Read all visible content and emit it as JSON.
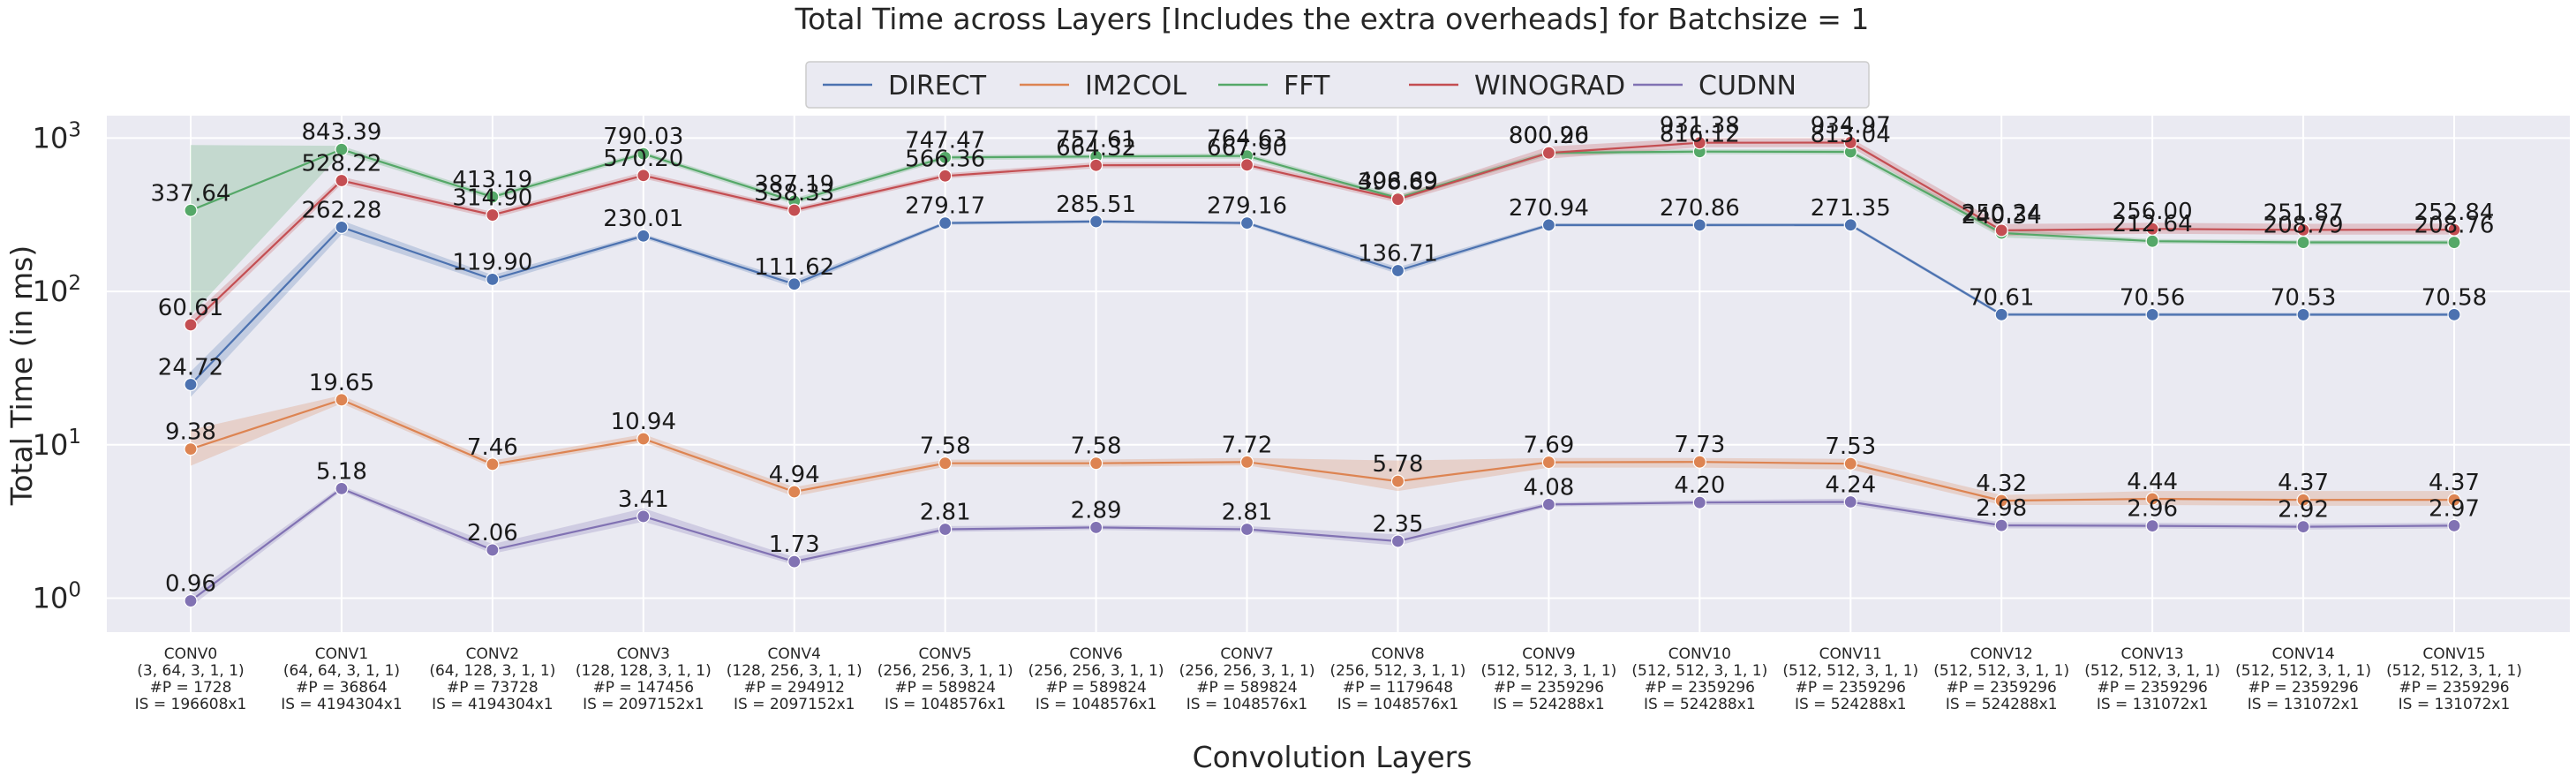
{
  "chart_data": {
    "type": "line",
    "title": "Total Time across Layers [Includes the extra overheads]  for Batchsize = 1",
    "xlabel": "Convolution Layers",
    "ylabel": "Total Time (in ms)",
    "y_scale": "log",
    "ylim": [
      0.6,
      1400
    ],
    "y_ticks": [
      {
        "value": 1,
        "base": "10",
        "exp": "0"
      },
      {
        "value": 10,
        "base": "10",
        "exp": "1"
      },
      {
        "value": 100,
        "base": "10",
        "exp": "2"
      },
      {
        "value": 1000,
        "base": "10",
        "exp": "3"
      }
    ],
    "grid": true,
    "legend_position": "top-center",
    "categories": [
      {
        "name": "CONV0",
        "shape": "(3, 64, 3, 1, 1)",
        "params": "#P = 1728",
        "is": "IS = 196608x1"
      },
      {
        "name": "CONV1",
        "shape": "(64, 64, 3, 1, 1)",
        "params": "#P = 36864",
        "is": "IS = 4194304x1"
      },
      {
        "name": "CONV2",
        "shape": "(64, 128, 3, 1, 1)",
        "params": "#P = 73728",
        "is": "IS = 4194304x1"
      },
      {
        "name": "CONV3",
        "shape": "(128, 128, 3, 1, 1)",
        "params": "#P = 147456",
        "is": "IS = 2097152x1"
      },
      {
        "name": "CONV4",
        "shape": "(128, 256, 3, 1, 1)",
        "params": "#P = 294912",
        "is": "IS = 2097152x1"
      },
      {
        "name": "CONV5",
        "shape": "(256, 256, 3, 1, 1)",
        "params": "#P = 589824",
        "is": "IS = 1048576x1"
      },
      {
        "name": "CONV6",
        "shape": "(256, 256, 3, 1, 1)",
        "params": "#P = 589824",
        "is": "IS = 1048576x1"
      },
      {
        "name": "CONV7",
        "shape": "(256, 256, 3, 1, 1)",
        "params": "#P = 589824",
        "is": "IS = 1048576x1"
      },
      {
        "name": "CONV8",
        "shape": "(256, 512, 3, 1, 1)",
        "params": "#P = 1179648",
        "is": "IS = 1048576x1"
      },
      {
        "name": "CONV9",
        "shape": "(512, 512, 3, 1, 1)",
        "params": "#P = 2359296",
        "is": "IS = 524288x1"
      },
      {
        "name": "CONV10",
        "shape": "(512, 512, 3, 1, 1)",
        "params": "#P = 2359296",
        "is": "IS = 524288x1"
      },
      {
        "name": "CONV11",
        "shape": "(512, 512, 3, 1, 1)",
        "params": "#P = 2359296",
        "is": "IS = 524288x1"
      },
      {
        "name": "CONV12",
        "shape": "(512, 512, 3, 1, 1)",
        "params": "#P = 2359296",
        "is": "IS = 524288x1"
      },
      {
        "name": "CONV13",
        "shape": "(512, 512, 3, 1, 1)",
        "params": "#P = 2359296",
        "is": "IS = 131072x1"
      },
      {
        "name": "CONV14",
        "shape": "(512, 512, 3, 1, 1)",
        "params": "#P = 2359296",
        "is": "IS = 131072x1"
      },
      {
        "name": "CONV15",
        "shape": "(512, 512, 3, 1, 1)",
        "params": "#P = 2359296",
        "is": "IS = 131072x1"
      }
    ],
    "series": [
      {
        "name": "DIRECT",
        "color": "#4c72b0",
        "values": [
          24.72,
          262.28,
          119.9,
          230.01,
          111.62,
          279.17,
          285.51,
          279.16,
          136.71,
          270.94,
          270.86,
          271.35,
          70.61,
          70.56,
          70.53,
          70.58
        ],
        "labels": [
          "24.72",
          "262.28",
          "119.90",
          "230.01",
          "111.62",
          "279.17",
          "285.51",
          "279.16",
          "136.71",
          "270.94",
          "270.86",
          "271.35",
          "70.61",
          "70.56",
          "70.53",
          "70.58"
        ],
        "band_low": [
          20.5,
          235,
          112,
          222,
          106,
          272,
          278,
          272,
          130,
          264,
          264,
          264,
          69,
          69,
          69,
          69
        ],
        "band_high": [
          30,
          290,
          128,
          238,
          118,
          286,
          293,
          286,
          144,
          278,
          278,
          278,
          72.5,
          72.5,
          72.5,
          72.5
        ]
      },
      {
        "name": "IM2COL",
        "color": "#dd8452",
        "values": [
          9.38,
          19.65,
          7.46,
          10.94,
          4.94,
          7.58,
          7.58,
          7.72,
          5.78,
          7.69,
          7.73,
          7.53,
          4.32,
          4.44,
          4.37,
          4.37
        ],
        "labels": [
          "9.38",
          "19.65",
          "7.46",
          "10.94",
          "4.94",
          "7.58",
          "7.58",
          "7.72",
          "5.78",
          "7.69",
          "7.73",
          "7.53",
          "4.32",
          "4.44",
          "4.37",
          "4.37"
        ],
        "band_low": [
          7.3,
          18.6,
          7.1,
          10.4,
          4.6,
          7.2,
          7.2,
          7.35,
          5.0,
          7.1,
          7.1,
          6.9,
          4.05,
          4.05,
          4.0,
          4.0
        ],
        "band_high": [
          12.5,
          21.0,
          7.9,
          11.7,
          5.3,
          8.0,
          8.0,
          8.2,
          7.9,
          8.2,
          8.2,
          8.1,
          4.7,
          5.0,
          5.0,
          5.0
        ]
      },
      {
        "name": "FFT",
        "color": "#55a868",
        "values": [
          337.64,
          843.39,
          413.19,
          790.03,
          387.19,
          747.47,
          757.61,
          764.63,
          406.69,
          800.96,
          816.12,
          813.04,
          240.34,
          212.64,
          208.79,
          208.76
        ],
        "labels": [
          "337.64",
          "843.39",
          "413.19",
          "790.03",
          "387.19",
          "747.47",
          "757.61",
          "764.63",
          "406.69",
          "800.96",
          "816.12",
          "813.04",
          "240.34",
          "212.64",
          "208.79",
          "208.76"
        ],
        "band_low": [
          70,
          800,
          395,
          760,
          370,
          720,
          730,
          735,
          390,
          770,
          785,
          780,
          225,
          205,
          201,
          201
        ],
        "band_high": [
          900,
          890,
          430,
          820,
          405,
          775,
          785,
          795,
          425,
          830,
          845,
          845,
          255,
          220,
          216,
          216
        ]
      },
      {
        "name": "WINOGRAD",
        "color": "#c44e52",
        "values": [
          60.61,
          528.22,
          314.9,
          570.2,
          338.33,
          566.36,
          664.32,
          667.9,
          398.89,
          800.2,
          931.38,
          934.97,
          250.24,
          256.0,
          251.87,
          252.84
        ],
        "labels": [
          "60.61",
          "528.22",
          "314.90",
          "570.20",
          "338.33",
          "566.36",
          "664.32",
          "667.90",
          "398.89",
          "800.20",
          "931.38",
          "934.97",
          "250.24",
          "256.00",
          "251.87",
          "252.84"
        ],
        "band_low": [
          55,
          500,
          300,
          545,
          325,
          545,
          635,
          640,
          380,
          735,
          870,
          875,
          230,
          238,
          234,
          235
        ],
        "band_high": [
          68,
          560,
          330,
          600,
          352,
          590,
          695,
          700,
          420,
          880,
          1000,
          1000,
          275,
          280,
          276,
          277
        ]
      },
      {
        "name": "CUDNN",
        "color": "#8172b3",
        "values": [
          0.96,
          5.18,
          2.06,
          3.41,
          1.73,
          2.81,
          2.89,
          2.81,
          2.35,
          4.08,
          4.2,
          4.24,
          2.98,
          2.96,
          2.92,
          2.97
        ],
        "labels": [
          "0.96",
          "5.18",
          "2.06",
          "3.41",
          "1.73",
          "2.81",
          "2.89",
          "2.81",
          "2.35",
          "4.08",
          "4.20",
          "4.24",
          "2.98",
          "2.96",
          "2.92",
          "2.97"
        ],
        "band_low": [
          0.88,
          5.0,
          1.95,
          3.15,
          1.65,
          2.7,
          2.78,
          2.7,
          2.2,
          3.95,
          4.05,
          4.05,
          2.85,
          2.85,
          2.8,
          2.85
        ],
        "band_high": [
          1.05,
          5.4,
          2.25,
          3.85,
          1.85,
          2.95,
          3.0,
          2.95,
          2.6,
          4.22,
          4.35,
          4.45,
          3.12,
          3.1,
          3.05,
          3.1
        ]
      }
    ]
  }
}
